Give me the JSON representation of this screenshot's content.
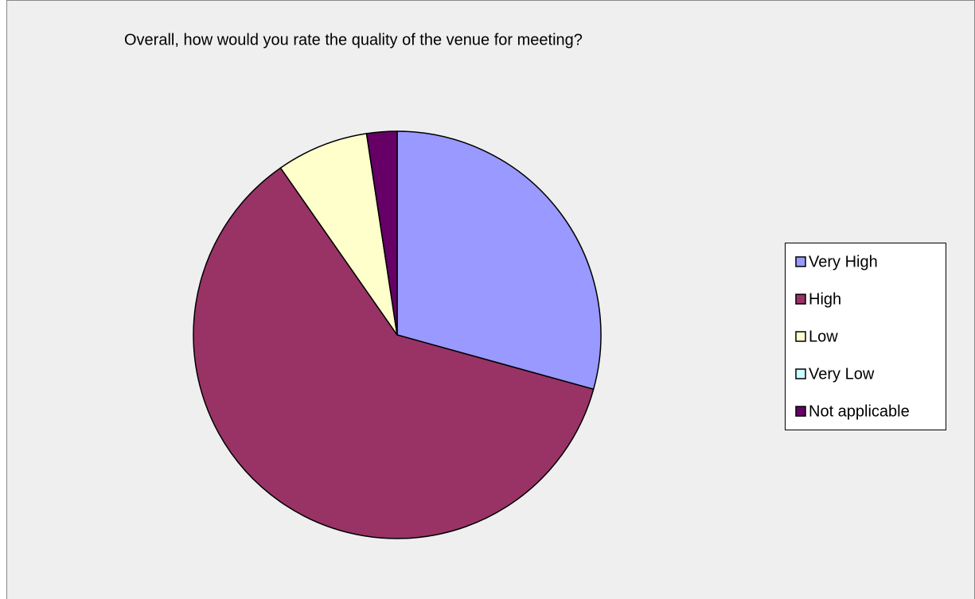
{
  "chart_data": {
    "type": "pie",
    "title": "Overall, how would you rate the quality of the venue for meeting?",
    "categories": [
      "Very High",
      "High",
      "Low",
      "Very Low",
      "Not applicable"
    ],
    "values": [
      29.3,
      61.0,
      7.3,
      0,
      2.4
    ],
    "colors": [
      "#9999ff",
      "#993366",
      "#ffffcc",
      "#ccffff",
      "#660066"
    ],
    "legend": "right"
  }
}
